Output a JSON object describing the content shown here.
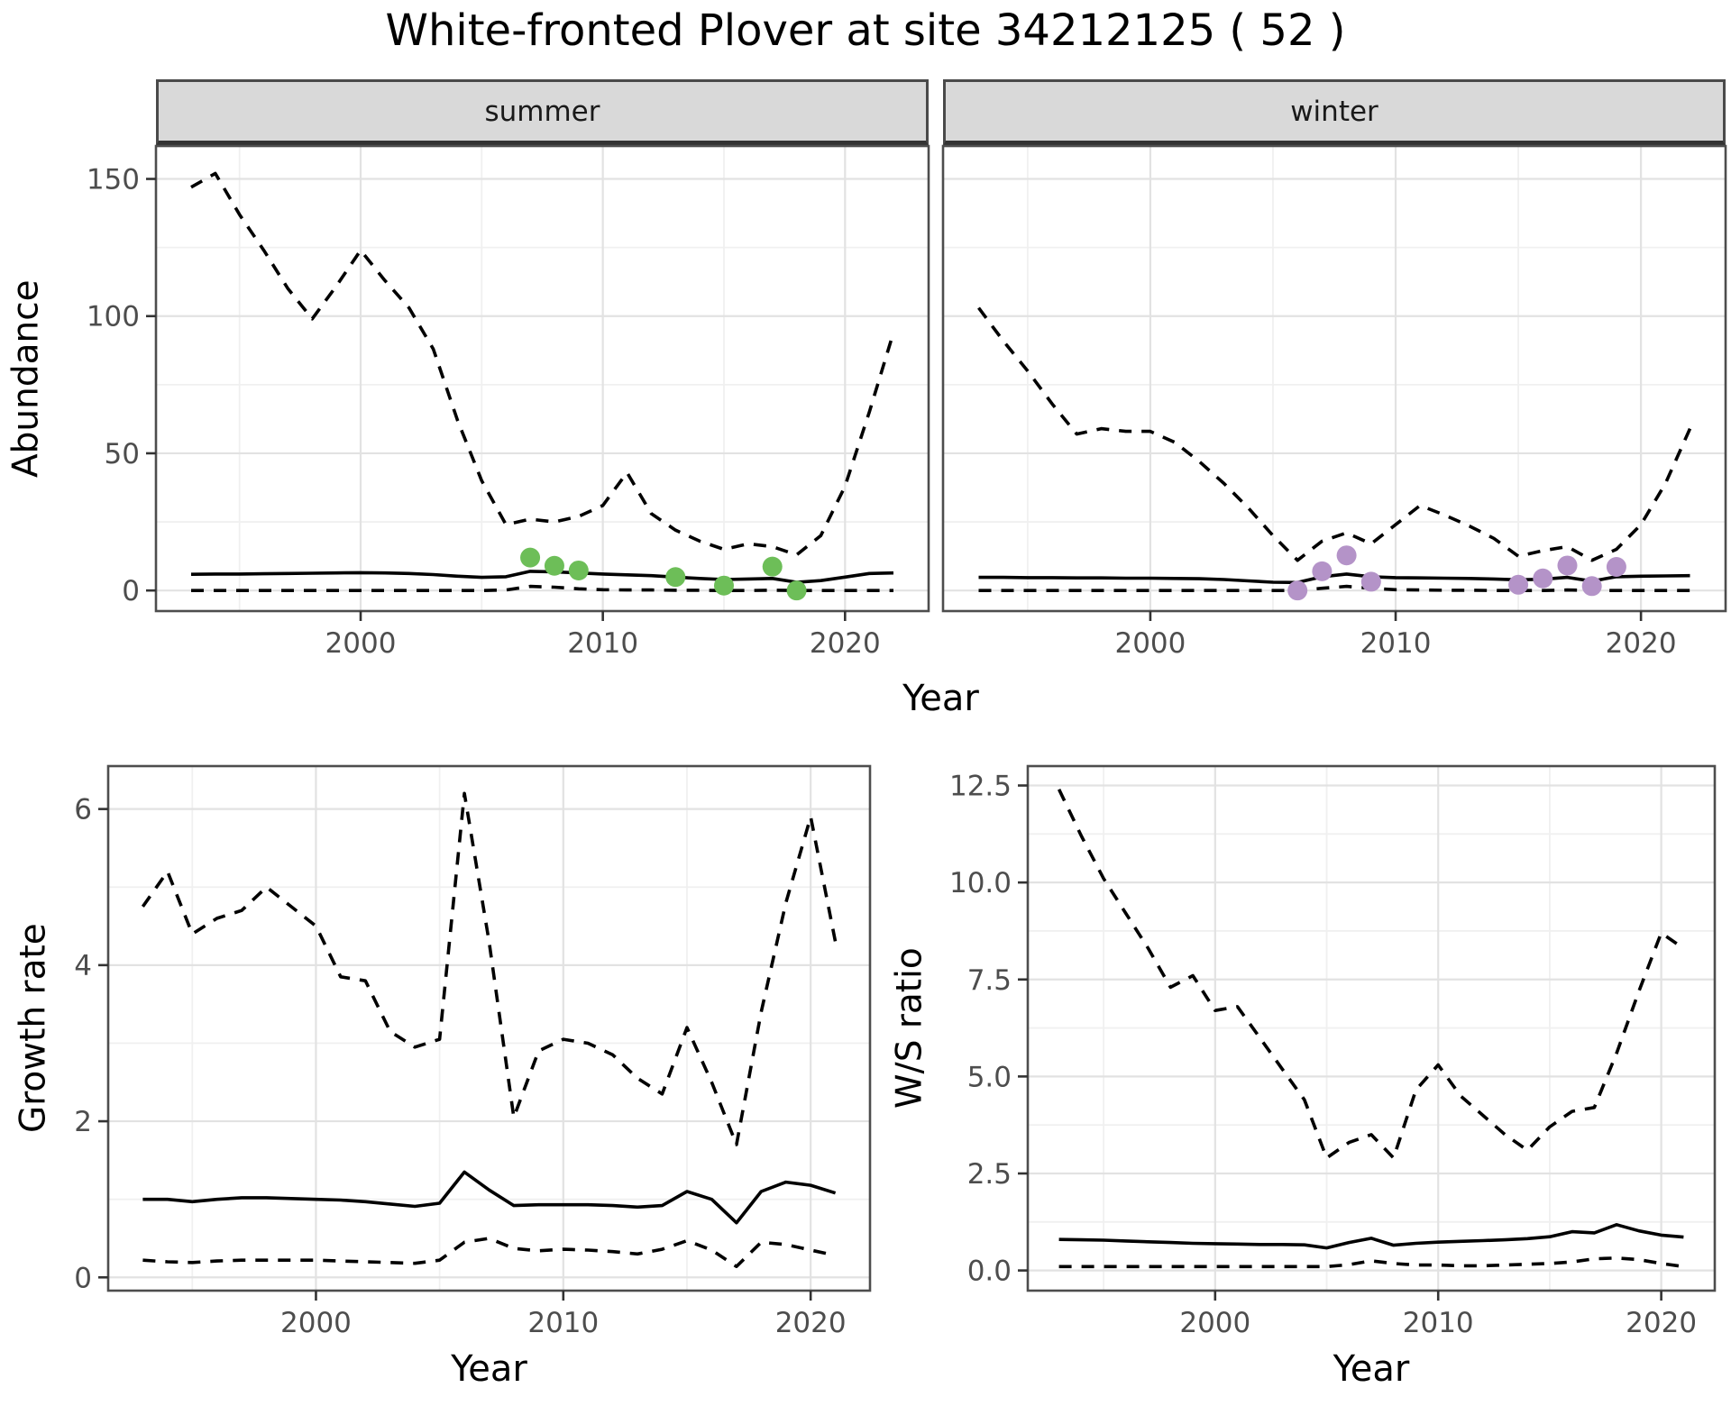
{
  "title": "White-fronted Plover at site 34212125 ( 52 )",
  "colors": {
    "summer_dot": "#6DBE58",
    "winter_dot": "#B493C8",
    "line": "#000000",
    "grid_major": "#E2E2E2",
    "grid_minor": "#F0F0F0",
    "panel_border": "#4D4D4D",
    "strip_bg": "#D9D9D9",
    "tick_text": "#4D4D4D",
    "tick_mark": "#333333"
  },
  "chart_data": {
    "type": "line",
    "title": "White-fronted Plover at site 34212125 ( 52 )",
    "top_row": {
      "ylabel": "Abundance",
      "xlabel": "Year",
      "xlim": [
        1991.55,
        2023.45
      ],
      "ylim": [
        -7.5,
        162
      ],
      "x_ticks": [
        {
          "v": 2000,
          "label": "2000"
        },
        {
          "v": 2010,
          "label": "2010"
        },
        {
          "v": 2020,
          "label": "2020"
        }
      ],
      "x_minor": [
        1995,
        2005,
        2015
      ],
      "y_ticks": [
        {
          "v": 0,
          "label": "0"
        },
        {
          "v": 50,
          "label": "50"
        },
        {
          "v": 100,
          "label": "100"
        },
        {
          "v": 150,
          "label": "150"
        }
      ],
      "y_minor": [
        25,
        75,
        125
      ],
      "years": [
        1993,
        1994,
        1995,
        1996,
        1997,
        1998,
        1999,
        2000,
        2001,
        2002,
        2003,
        2004,
        2005,
        2006,
        2007,
        2008,
        2009,
        2010,
        2011,
        2012,
        2013,
        2014,
        2015,
        2016,
        2017,
        2018,
        2019,
        2020,
        2021,
        2022
      ],
      "facets": [
        {
          "label": "summer",
          "dot_color": "#6DBE58",
          "upper": [
            147,
            152,
            137,
            124,
            110,
            99,
            111,
            124,
            113,
            103,
            88,
            62,
            40,
            24,
            26,
            25,
            27,
            31,
            43,
            28,
            22,
            18,
            15,
            17,
            16,
            13,
            20,
            38,
            65,
            94
          ],
          "median": [
            5.9,
            6.0,
            6.0,
            6.1,
            6.2,
            6.3,
            6.4,
            6.5,
            6.4,
            6.2,
            5.8,
            5.2,
            4.8,
            5.0,
            7.0,
            6.8,
            6.4,
            6.0,
            5.7,
            5.4,
            4.9,
            4.4,
            4.0,
            4.2,
            4.4,
            3.0,
            3.6,
            4.9,
            6.2,
            6.4
          ],
          "lower": [
            0,
            0,
            0,
            0,
            0,
            0,
            0,
            0,
            0,
            0,
            0,
            0,
            0,
            0.2,
            1.5,
            1.2,
            0.6,
            0.3,
            0.2,
            0.2,
            0.1,
            0.1,
            0,
            0,
            0.1,
            0,
            0,
            0,
            0,
            0
          ],
          "dots": {
            "years": [
              2007,
              2008,
              2009,
              2013,
              2015,
              2017,
              2018
            ],
            "values": [
              12,
              9,
              7.3,
              4.9,
              1.8,
              8.7,
              0
            ]
          }
        },
        {
          "label": "winter",
          "dot_color": "#B493C8",
          "upper": [
            103,
            91,
            80,
            68,
            57,
            59,
            58,
            58,
            54,
            47,
            39,
            30,
            20,
            11,
            18,
            21,
            17,
            24,
            31,
            27.5,
            23.5,
            19,
            12.5,
            14.5,
            16,
            11,
            15,
            24,
            39,
            59
          ],
          "median": [
            4.8,
            4.8,
            4.7,
            4.7,
            4.6,
            4.6,
            4.5,
            4.5,
            4.4,
            4.3,
            4.0,
            3.5,
            3.0,
            2.9,
            5.0,
            6.0,
            5.0,
            4.7,
            4.6,
            4.5,
            4.4,
            4.2,
            3.9,
            4.1,
            4.8,
            3.4,
            5.0,
            5.2,
            5.3,
            5.4
          ],
          "lower": [
            0,
            0,
            0,
            0,
            0,
            0,
            0,
            0,
            0,
            0,
            0,
            0,
            0,
            0,
            0.8,
            1.5,
            0.8,
            0.3,
            0.2,
            0.1,
            0.1,
            0,
            0,
            0,
            0.2,
            0,
            0,
            0,
            0,
            0
          ],
          "dots": {
            "years": [
              2006,
              2007,
              2008,
              2009,
              2015,
              2016,
              2017,
              2018,
              2019
            ],
            "values": [
              0,
              7,
              12.8,
              3.2,
              2.1,
              4.4,
              9.1,
              1.6,
              8.6
            ]
          }
        }
      ]
    },
    "growth": {
      "ylabel": "Growth rate",
      "xlabel": "Year",
      "xlim": [
        1991.6,
        2022.4
      ],
      "ylim": [
        -0.17,
        6.55
      ],
      "x_ticks": [
        {
          "v": 2000,
          "label": "2000"
        },
        {
          "v": 2010,
          "label": "2010"
        },
        {
          "v": 2020,
          "label": "2020"
        }
      ],
      "x_minor": [
        1995,
        2005,
        2015
      ],
      "y_ticks": [
        {
          "v": 0,
          "label": "0"
        },
        {
          "v": 2,
          "label": "2"
        },
        {
          "v": 4,
          "label": "4"
        },
        {
          "v": 6,
          "label": "6"
        }
      ],
      "y_minor": [
        1,
        3,
        5
      ],
      "years": [
        1993,
        1994,
        1995,
        1996,
        1997,
        1998,
        1999,
        2000,
        2001,
        2002,
        2003,
        2004,
        2005,
        2006,
        2007,
        2008,
        2009,
        2010,
        2011,
        2012,
        2013,
        2014,
        2015,
        2016,
        2017,
        2018,
        2019,
        2020,
        2021
      ],
      "upper": [
        4.75,
        5.2,
        4.4,
        4.6,
        4.7,
        5.0,
        4.75,
        4.5,
        3.85,
        3.8,
        3.15,
        2.95,
        3.05,
        6.2,
        4.3,
        2.05,
        2.9,
        3.05,
        3.0,
        2.85,
        2.55,
        2.35,
        3.2,
        2.5,
        1.7,
        3.4,
        4.8,
        5.9,
        4.3
      ],
      "median": [
        1.0,
        1.0,
        0.97,
        1.0,
        1.02,
        1.02,
        1.01,
        1.0,
        0.99,
        0.97,
        0.94,
        0.91,
        0.95,
        1.35,
        1.12,
        0.92,
        0.93,
        0.93,
        0.93,
        0.92,
        0.9,
        0.92,
        1.1,
        1.0,
        0.7,
        1.1,
        1.22,
        1.18,
        1.08
      ],
      "lower": [
        0.22,
        0.2,
        0.19,
        0.21,
        0.22,
        0.22,
        0.22,
        0.22,
        0.21,
        0.2,
        0.19,
        0.18,
        0.22,
        0.45,
        0.5,
        0.37,
        0.34,
        0.36,
        0.35,
        0.33,
        0.3,
        0.36,
        0.47,
        0.35,
        0.14,
        0.45,
        0.42,
        0.35,
        0.28
      ]
    },
    "ws": {
      "ylabel": "W/S ratio",
      "xlabel": "Year",
      "xlim": [
        1991.6,
        2022.4
      ],
      "ylim": [
        -0.52,
        13.0
      ],
      "x_ticks": [
        {
          "v": 2000,
          "label": "2000"
        },
        {
          "v": 2010,
          "label": "2010"
        },
        {
          "v": 2020,
          "label": "2020"
        }
      ],
      "x_minor": [
        1995,
        2005,
        2015
      ],
      "y_ticks": [
        {
          "v": 0,
          "label": "0.0"
        },
        {
          "v": 2.5,
          "label": "2.5"
        },
        {
          "v": 5,
          "label": "5.0"
        },
        {
          "v": 7.5,
          "label": "7.5"
        },
        {
          "v": 10,
          "label": "10.0"
        },
        {
          "v": 12.5,
          "label": "12.5"
        }
      ],
      "y_minor": [
        1.25,
        3.75,
        6.25,
        8.75,
        11.25
      ],
      "years": [
        1993,
        1994,
        1995,
        1996,
        1997,
        1998,
        1999,
        2000,
        2001,
        2002,
        2003,
        2004,
        2005,
        2006,
        2007,
        2008,
        2009,
        2010,
        2011,
        2012,
        2013,
        2014,
        2015,
        2016,
        2017,
        2018,
        2019,
        2020,
        2021
      ],
      "upper": [
        12.4,
        11.2,
        10.1,
        9.2,
        8.3,
        7.3,
        7.6,
        6.7,
        6.8,
        6.0,
        5.2,
        4.4,
        2.9,
        3.3,
        3.5,
        2.9,
        4.65,
        5.3,
        4.5,
        4.0,
        3.5,
        3.1,
        3.7,
        4.1,
        4.2,
        5.6,
        7.2,
        8.7,
        8.3
      ],
      "median": [
        0.8,
        0.79,
        0.78,
        0.76,
        0.74,
        0.72,
        0.7,
        0.69,
        0.68,
        0.67,
        0.67,
        0.66,
        0.58,
        0.72,
        0.83,
        0.65,
        0.7,
        0.73,
        0.75,
        0.77,
        0.79,
        0.82,
        0.87,
        1.0,
        0.97,
        1.18,
        1.02,
        0.91,
        0.86
      ],
      "lower": [
        0.1,
        0.1,
        0.1,
        0.1,
        0.1,
        0.1,
        0.1,
        0.1,
        0.1,
        0.1,
        0.1,
        0.1,
        0.1,
        0.15,
        0.25,
        0.18,
        0.14,
        0.14,
        0.12,
        0.12,
        0.14,
        0.16,
        0.18,
        0.22,
        0.3,
        0.32,
        0.28,
        0.18,
        0.1
      ]
    }
  }
}
